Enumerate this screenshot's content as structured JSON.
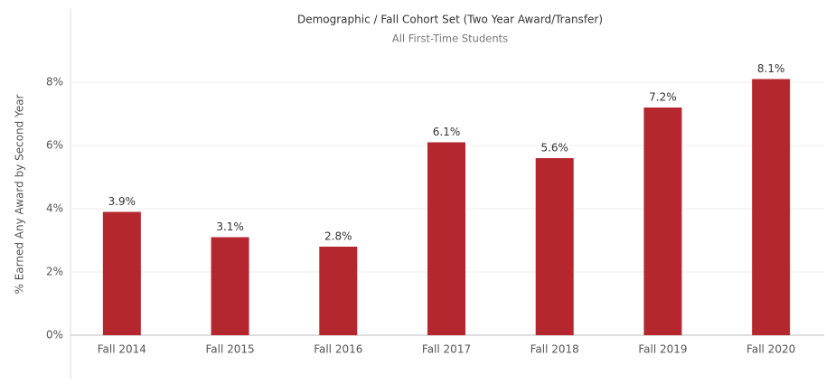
{
  "chart_data": {
    "type": "bar",
    "title": "Demographic / Fall Cohort Set (Two Year Award/Transfer)",
    "subtitle": "All First-Time Students",
    "y_label": "% Earned Any Award by Second Year",
    "categories": [
      "Fall 2014",
      "Fall 2015",
      "Fall 2016",
      "Fall 2017",
      "Fall 2018",
      "Fall 2019",
      "Fall 2020"
    ],
    "values": [
      3.9,
      3.1,
      2.8,
      6.1,
      5.6,
      7.2,
      8.1
    ],
    "value_labels": [
      "3.9%",
      "3.1%",
      "2.8%",
      "6.1%",
      "5.6%",
      "7.2%",
      "8.1%"
    ],
    "color": "#b5272f",
    "ylim": [
      0,
      8.8
    ],
    "yticks": [
      {
        "value": 0,
        "label": "0%"
      },
      {
        "value": 2,
        "label": "2%"
      },
      {
        "value": 4,
        "label": "4%"
      },
      {
        "value": 6,
        "label": "6%"
      },
      {
        "value": 8,
        "label": "8%"
      }
    ],
    "grid": true
  }
}
